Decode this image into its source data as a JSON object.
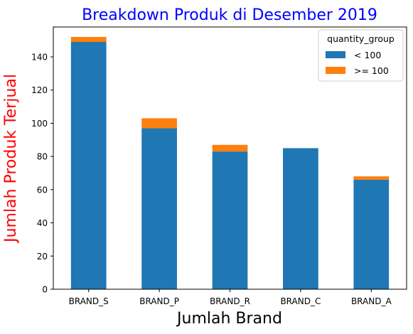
{
  "chart_data": {
    "type": "bar",
    "stacked": true,
    "title": "Breakdown Produk di Desember 2019",
    "xlabel": "Jumlah Brand",
    "ylabel": "Jumlah Produk Terjual",
    "categories": [
      "BRAND_S",
      "BRAND_P",
      "BRAND_R",
      "BRAND_C",
      "BRAND_A"
    ],
    "series": [
      {
        "name": "< 100",
        "color": "#1f77b4",
        "values": [
          149,
          97,
          83,
          85,
          66
        ]
      },
      {
        "name": ">= 100",
        "color": "#ff7f0e",
        "values": [
          3,
          6,
          4,
          0,
          2
        ]
      }
    ],
    "ylim": [
      0,
      158
    ],
    "yticks": [
      0,
      20,
      40,
      60,
      80,
      100,
      120,
      140
    ],
    "legend": {
      "title": "quantity_group",
      "placement": "top-right"
    },
    "grid": false,
    "colors": {
      "title": "#0000ff",
      "ylabel": "#ff0000",
      "xlabel": "#000000"
    }
  }
}
